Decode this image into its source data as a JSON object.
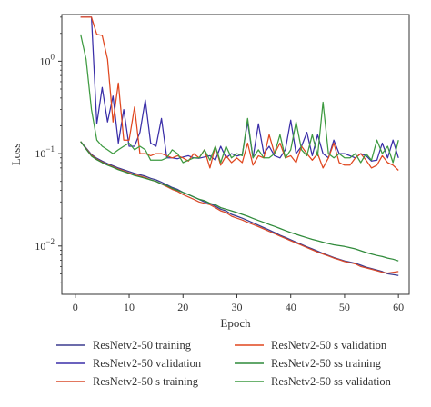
{
  "chart_data": {
    "type": "line",
    "title": "",
    "xlabel": "Epoch",
    "ylabel": "Loss",
    "xlim": [
      -2.5,
      62
    ],
    "ylim": [
      0.003,
      3.2
    ],
    "yscale": "log",
    "xticks": [
      0,
      10,
      20,
      30,
      40,
      50,
      60
    ],
    "yticks": [
      {
        "value": 0.01,
        "base": "10",
        "exp": "−2"
      },
      {
        "value": 0.1,
        "base": "10",
        "exp": "−1"
      },
      {
        "value": 1,
        "base": "10",
        "exp": "0"
      }
    ],
    "grid": false,
    "legend_position": "bottom",
    "x": [
      1,
      2,
      3,
      4,
      5,
      6,
      7,
      8,
      9,
      10,
      11,
      12,
      13,
      14,
      15,
      16,
      17,
      18,
      19,
      20,
      21,
      22,
      23,
      24,
      25,
      26,
      27,
      28,
      29,
      30,
      31,
      32,
      33,
      34,
      35,
      36,
      37,
      38,
      39,
      40,
      41,
      42,
      43,
      44,
      45,
      46,
      47,
      48,
      49,
      50,
      51,
      52,
      53,
      54,
      55,
      56,
      57,
      58,
      59,
      60
    ],
    "series": [
      {
        "name": "ResNetv2-50 training",
        "color": "#3b3b8f",
        "values": [
          0.135,
          0.115,
          0.098,
          0.089,
          0.083,
          0.078,
          0.074,
          0.07,
          0.067,
          0.064,
          0.061,
          0.059,
          0.057,
          0.054,
          0.052,
          0.049,
          0.046,
          0.043,
          0.041,
          0.038,
          0.036,
          0.034,
          0.032,
          0.03,
          0.029,
          0.027,
          0.025,
          0.024,
          0.022,
          0.021,
          0.02,
          0.0189,
          0.0178,
          0.0168,
          0.0158,
          0.0149,
          0.014,
          0.0131,
          0.0124,
          0.0117,
          0.011,
          0.0104,
          0.0098,
          0.0093,
          0.0088,
          0.0083,
          0.0079,
          0.0075,
          0.0072,
          0.0069,
          0.0067,
          0.0065,
          0.0062,
          0.0059,
          0.0057,
          0.0055,
          0.0053,
          0.005,
          0.0049,
          0.0048
        ]
      },
      {
        "name": "ResNetv2-50 validation",
        "color": "#3a2ea8",
        "values": [
          3.0,
          3.0,
          3.0,
          0.21,
          0.52,
          0.22,
          0.42,
          0.13,
          0.3,
          0.12,
          0.12,
          0.17,
          0.38,
          0.13,
          0.12,
          0.24,
          0.09,
          0.09,
          0.088,
          0.092,
          0.095,
          0.09,
          0.089,
          0.092,
          0.095,
          0.085,
          0.12,
          0.09,
          0.1,
          0.094,
          0.098,
          0.22,
          0.09,
          0.21,
          0.1,
          0.12,
          0.095,
          0.09,
          0.11,
          0.23,
          0.1,
          0.12,
          0.17,
          0.095,
          0.16,
          0.1,
          0.09,
          0.14,
          0.1,
          0.1,
          0.095,
          0.09,
          0.1,
          0.095,
          0.083,
          0.085,
          0.13,
          0.09,
          0.14,
          0.09
        ]
      },
      {
        "name": "ResNetv2-50 s training",
        "color": "#d94a2a",
        "values": [
          0.135,
          0.113,
          0.096,
          0.087,
          0.081,
          0.076,
          0.072,
          0.068,
          0.065,
          0.062,
          0.059,
          0.057,
          0.055,
          0.052,
          0.05,
          0.047,
          0.044,
          0.041,
          0.039,
          0.036,
          0.034,
          0.032,
          0.03,
          0.029,
          0.028,
          0.026,
          0.024,
          0.023,
          0.021,
          0.02,
          0.0191,
          0.018,
          0.0171,
          0.0162,
          0.0153,
          0.0144,
          0.0136,
          0.0128,
          0.0121,
          0.0114,
          0.0108,
          0.0102,
          0.0096,
          0.0091,
          0.0086,
          0.0082,
          0.0078,
          0.0074,
          0.0071,
          0.0068,
          0.0066,
          0.0064,
          0.006,
          0.0058,
          0.0056,
          0.0054,
          0.0052,
          0.0051,
          0.0052,
          0.0053
        ]
      },
      {
        "name": "ResNetv2-50 s validation",
        "color": "#e0471f",
        "values": [
          3.0,
          3.0,
          3.0,
          1.95,
          1.9,
          1.05,
          0.22,
          0.58,
          0.14,
          0.14,
          0.32,
          0.1,
          0.1,
          0.095,
          0.1,
          0.1,
          0.095,
          0.09,
          0.095,
          0.09,
          0.083,
          0.1,
          0.09,
          0.11,
          0.07,
          0.12,
          0.075,
          0.095,
          0.08,
          0.09,
          0.08,
          0.13,
          0.075,
          0.095,
          0.09,
          0.16,
          0.1,
          0.13,
          0.09,
          0.095,
          0.08,
          0.12,
          0.1,
          0.085,
          0.1,
          0.07,
          0.09,
          0.13,
          0.08,
          0.075,
          0.075,
          0.09,
          0.1,
          0.085,
          0.07,
          0.075,
          0.095,
          0.08,
          0.075,
          0.066
        ]
      },
      {
        "name": "ResNetv2-50 ss training",
        "color": "#2f8a3a",
        "values": [
          0.135,
          0.112,
          0.094,
          0.086,
          0.08,
          0.075,
          0.071,
          0.067,
          0.064,
          0.061,
          0.058,
          0.056,
          0.054,
          0.052,
          0.05,
          0.047,
          0.045,
          0.042,
          0.04,
          0.038,
          0.036,
          0.034,
          0.032,
          0.031,
          0.029,
          0.028,
          0.026,
          0.025,
          0.024,
          0.023,
          0.022,
          0.021,
          0.0199,
          0.0189,
          0.018,
          0.0171,
          0.0163,
          0.0155,
          0.0147,
          0.014,
          0.0134,
          0.0128,
          0.0123,
          0.0118,
          0.0114,
          0.011,
          0.0106,
          0.0103,
          0.0101,
          0.0099,
          0.0096,
          0.0093,
          0.0089,
          0.0085,
          0.0082,
          0.0079,
          0.0077,
          0.0074,
          0.0072,
          0.0069
        ]
      },
      {
        "name": "ResNetv2-50 ss validation",
        "color": "#3d9a40",
        "values": [
          1.95,
          1.05,
          0.3,
          0.14,
          0.12,
          0.11,
          0.1,
          0.11,
          0.12,
          0.13,
          0.11,
          0.12,
          0.11,
          0.085,
          0.085,
          0.085,
          0.09,
          0.11,
          0.1,
          0.08,
          0.085,
          0.09,
          0.09,
          0.11,
          0.085,
          0.12,
          0.08,
          0.12,
          0.09,
          0.1,
          0.095,
          0.24,
          0.09,
          0.11,
          0.09,
          0.09,
          0.1,
          0.16,
          0.09,
          0.11,
          0.22,
          0.11,
          0.095,
          0.16,
          0.095,
          0.36,
          0.1,
          0.09,
          0.1,
          0.09,
          0.09,
          0.1,
          0.08,
          0.1,
          0.085,
          0.14,
          0.1,
          0.12,
          0.08,
          0.14
        ]
      }
    ]
  }
}
